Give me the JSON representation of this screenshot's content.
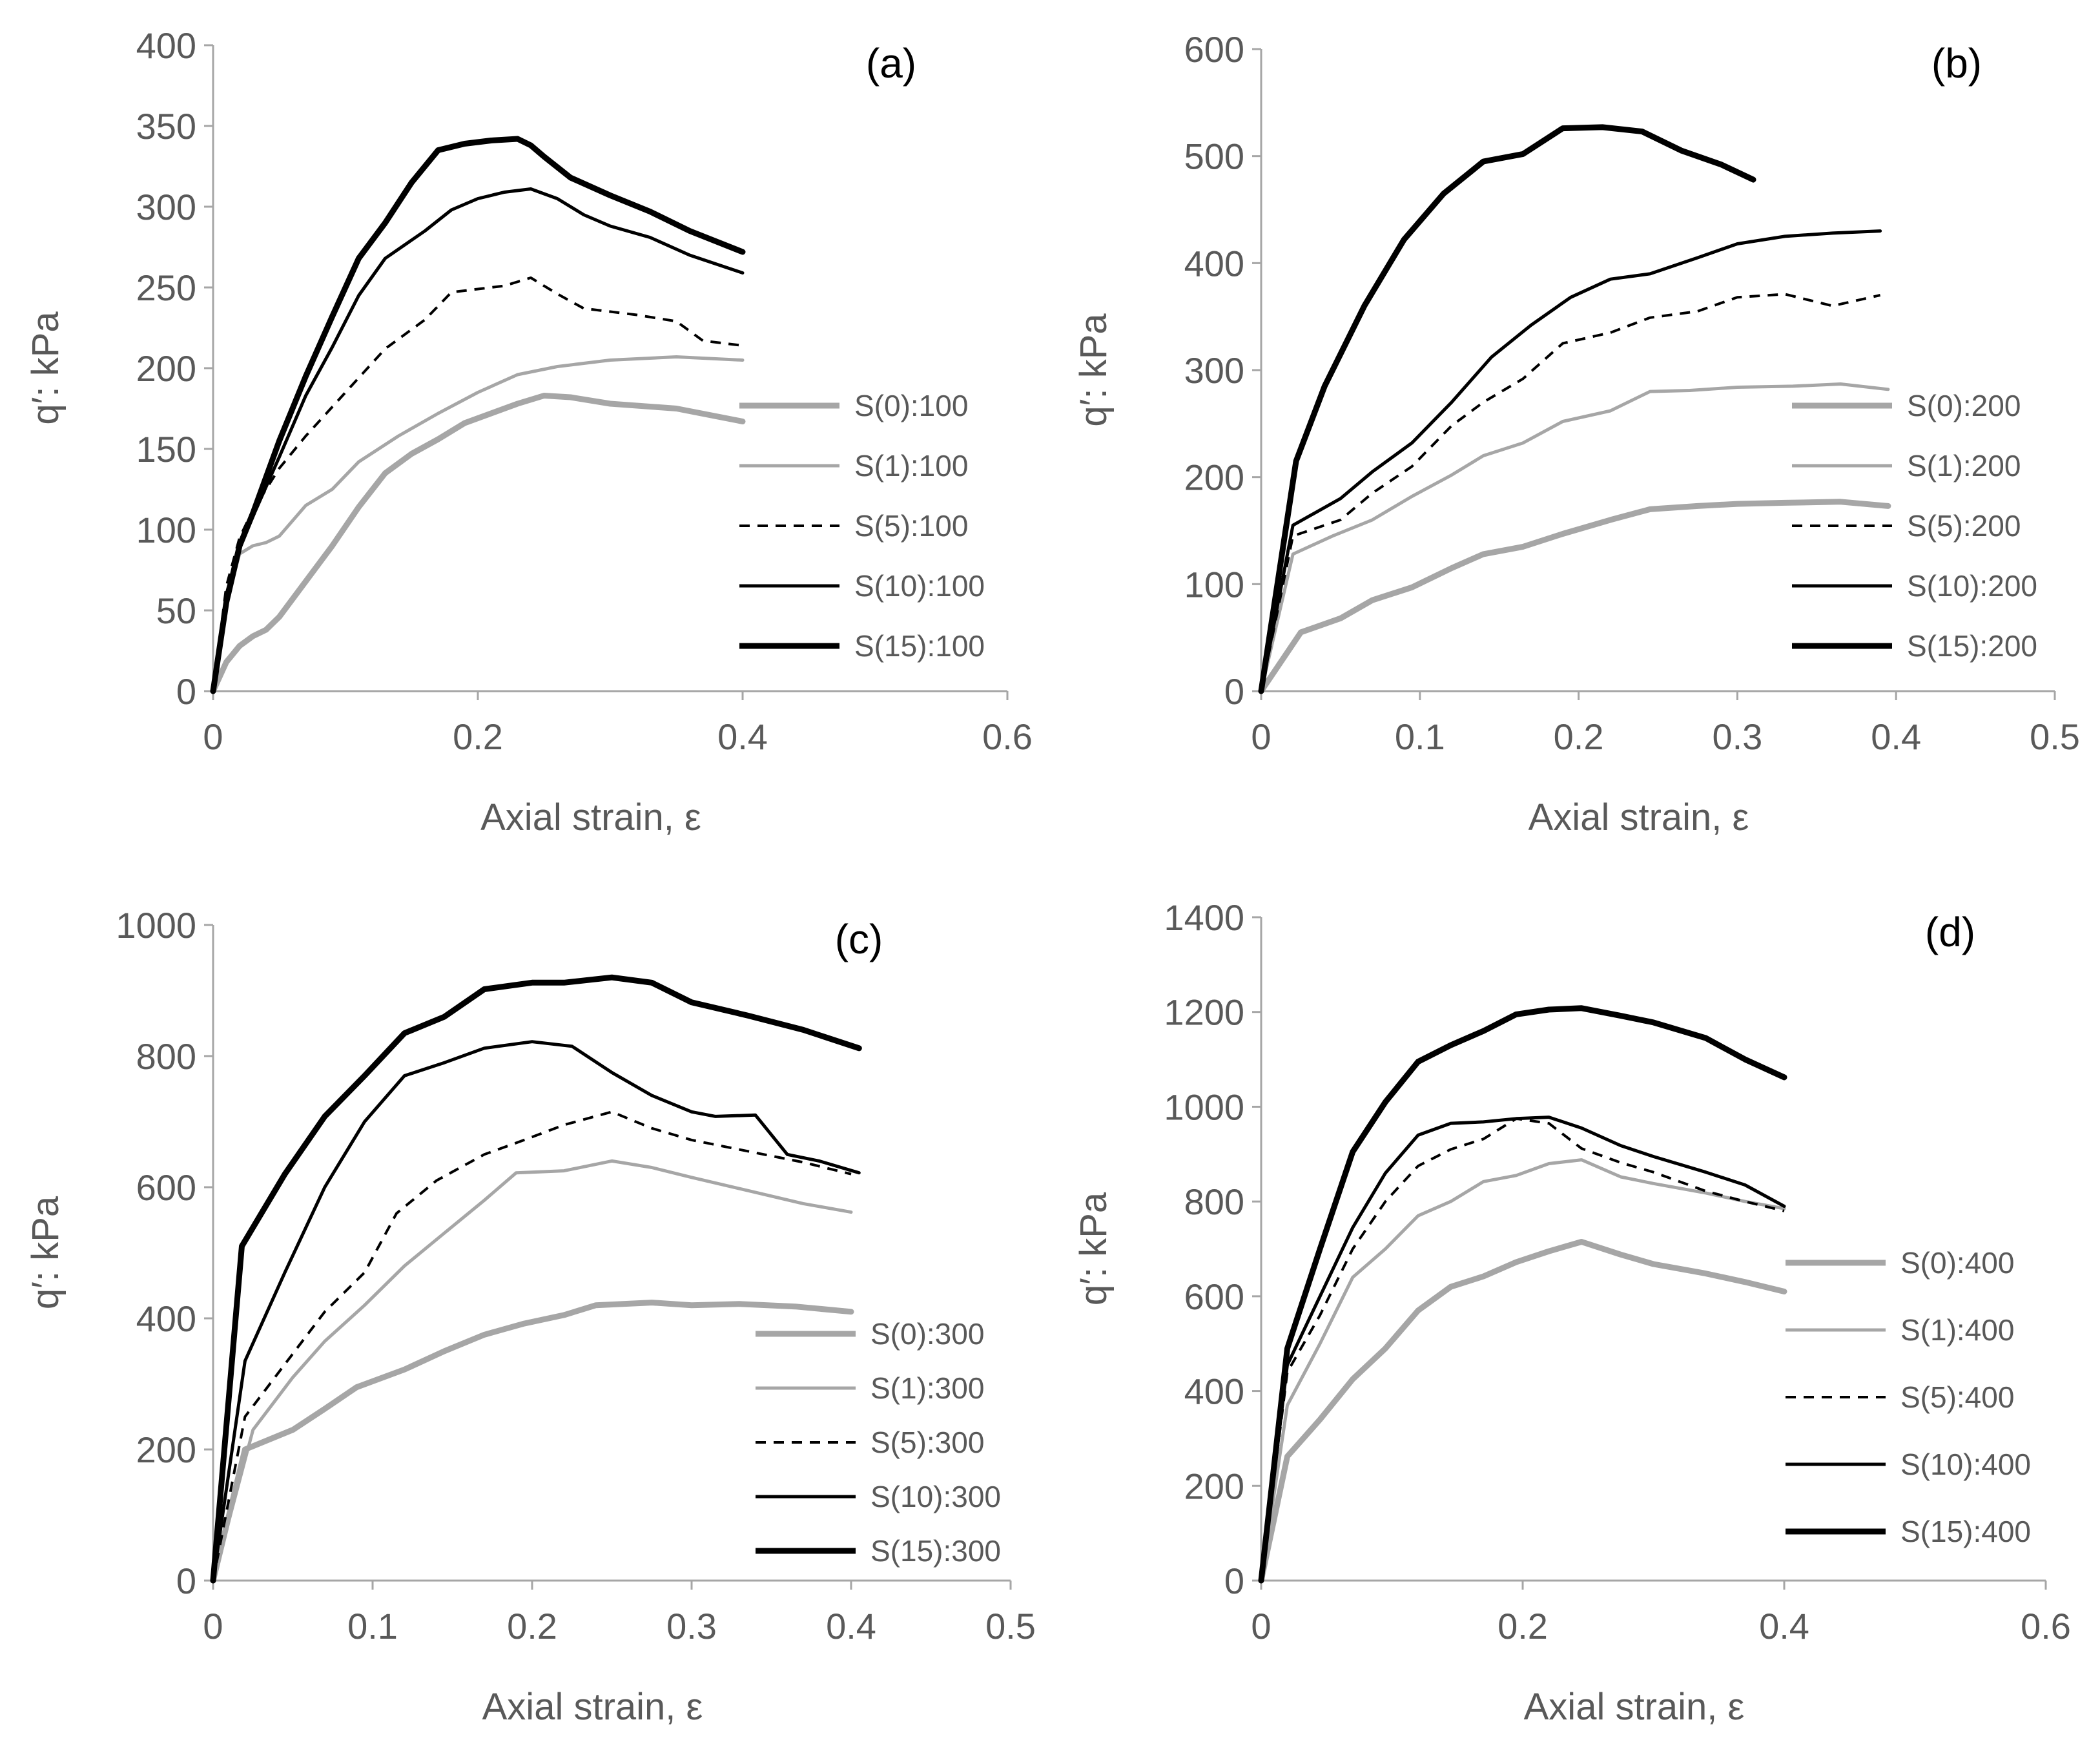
{
  "chart_data": [
    {
      "type": "line",
      "panel_label": "(a)",
      "xlabel": "Axial strain, ε",
      "ylabel": "q′: kPa",
      "xlim": [
        0,
        0.6
      ],
      "ylim": [
        0,
        400
      ],
      "xticks": [
        "0",
        "0.2",
        "0.4",
        "0.6"
      ],
      "yticks": [
        "0",
        "50",
        "100",
        "150",
        "200",
        "250",
        "300",
        "350",
        "400"
      ],
      "xtick_values": [
        0,
        0.2,
        0.4,
        0.6
      ],
      "ytick_values": [
        0,
        50,
        100,
        150,
        200,
        250,
        300,
        350,
        400
      ],
      "legend_position": "right",
      "series": [
        {
          "name": "S(0):100",
          "x": [
            0,
            0.01,
            0.02,
            0.03,
            0.04,
            0.05,
            0.07,
            0.09,
            0.11,
            0.13,
            0.15,
            0.17,
            0.19,
            0.21,
            0.23,
            0.25,
            0.27,
            0.3,
            0.35,
            0.4
          ],
          "y": [
            0,
            18,
            28,
            34,
            38,
            46,
            68,
            90,
            114,
            135,
            147,
            156,
            166,
            172,
            178,
            183,
            182,
            178,
            175,
            167
          ]
        },
        {
          "name": "S(1):100",
          "x": [
            0,
            0.01,
            0.02,
            0.03,
            0.04,
            0.05,
            0.07,
            0.09,
            0.11,
            0.14,
            0.17,
            0.2,
            0.23,
            0.26,
            0.3,
            0.35,
            0.4
          ],
          "y": [
            0,
            55,
            85,
            90,
            92,
            96,
            115,
            125,
            142,
            158,
            172,
            185,
            196,
            201,
            205,
            207,
            205
          ]
        },
        {
          "name": "S(5):100",
          "x": [
            0,
            0.01,
            0.02,
            0.03,
            0.05,
            0.07,
            0.1,
            0.13,
            0.16,
            0.18,
            0.2,
            0.22,
            0.24,
            0.26,
            0.28,
            0.32,
            0.35,
            0.37,
            0.4
          ],
          "y": [
            0,
            65,
            95,
            112,
            138,
            158,
            185,
            212,
            230,
            247,
            249,
            251,
            256,
            246,
            237,
            233,
            229,
            217,
            214
          ]
        },
        {
          "name": "S(10):100",
          "x": [
            0,
            0.01,
            0.02,
            0.03,
            0.05,
            0.07,
            0.09,
            0.11,
            0.13,
            0.16,
            0.18,
            0.2,
            0.22,
            0.24,
            0.26,
            0.28,
            0.3,
            0.33,
            0.36,
            0.4
          ],
          "y": [
            0,
            60,
            90,
            108,
            145,
            183,
            213,
            245,
            268,
            285,
            298,
            305,
            309,
            311,
            305,
            295,
            288,
            281,
            270,
            259
          ]
        },
        {
          "name": "S(15):100",
          "x": [
            0,
            0.01,
            0.02,
            0.03,
            0.05,
            0.07,
            0.09,
            0.11,
            0.13,
            0.15,
            0.17,
            0.19,
            0.21,
            0.23,
            0.24,
            0.25,
            0.27,
            0.3,
            0.33,
            0.36,
            0.4
          ],
          "y": [
            0,
            55,
            90,
            110,
            155,
            195,
            232,
            268,
            290,
            315,
            335,
            339,
            341,
            342,
            338,
            331,
            318,
            307,
            297,
            285,
            272
          ]
        }
      ]
    },
    {
      "type": "line",
      "panel_label": "(b)",
      "xlabel": "Axial strain, ε",
      "ylabel": "q′: kPa",
      "xlim": [
        0,
        0.5
      ],
      "ylim": [
        0,
        600
      ],
      "xticks": [
        "0",
        "0.1",
        "0.2",
        "0.3",
        "0.4",
        "0.5"
      ],
      "yticks": [
        "0",
        "100",
        "200",
        "300",
        "400",
        "500",
        "600"
      ],
      "xtick_values": [
        0,
        0.1,
        0.2,
        0.3,
        0.4,
        0.5
      ],
      "ytick_values": [
        0,
        100,
        200,
        300,
        400,
        500,
        600
      ],
      "legend_position": "right",
      "series": [
        {
          "name": "S(0):200",
          "x": [
            0,
            0.025,
            0.05,
            0.07,
            0.095,
            0.12,
            0.14,
            0.165,
            0.19,
            0.22,
            0.245,
            0.275,
            0.3,
            0.33,
            0.365,
            0.395
          ],
          "y": [
            0,
            55,
            68,
            85,
            97,
            115,
            128,
            135,
            147,
            160,
            170,
            173,
            175,
            176,
            177,
            173
          ]
        },
        {
          "name": "S(1):200",
          "x": [
            0,
            0.02,
            0.045,
            0.07,
            0.095,
            0.12,
            0.14,
            0.165,
            0.19,
            0.22,
            0.245,
            0.27,
            0.3,
            0.335,
            0.365,
            0.395
          ],
          "y": [
            0,
            128,
            145,
            160,
            182,
            202,
            220,
            232,
            252,
            262,
            280,
            281,
            284,
            285,
            287,
            282
          ]
        },
        {
          "name": "S(5):200",
          "x": [
            0,
            0.02,
            0.05,
            0.07,
            0.095,
            0.12,
            0.14,
            0.165,
            0.19,
            0.22,
            0.245,
            0.275,
            0.3,
            0.33,
            0.36,
            0.39
          ],
          "y": [
            0,
            145,
            160,
            185,
            210,
            248,
            270,
            292,
            325,
            335,
            349,
            355,
            368,
            371,
            360,
            370
          ]
        },
        {
          "name": "S(10):200",
          "x": [
            0,
            0.02,
            0.05,
            0.07,
            0.095,
            0.12,
            0.145,
            0.17,
            0.195,
            0.22,
            0.245,
            0.275,
            0.3,
            0.33,
            0.36,
            0.39
          ],
          "y": [
            0,
            155,
            180,
            205,
            232,
            270,
            312,
            342,
            368,
            385,
            390,
            405,
            418,
            425,
            428,
            430
          ]
        },
        {
          "name": "S(15):200",
          "x": [
            0,
            0.022,
            0.04,
            0.065,
            0.09,
            0.115,
            0.14,
            0.165,
            0.19,
            0.215,
            0.24,
            0.265,
            0.29,
            0.31
          ],
          "y": [
            0,
            215,
            285,
            360,
            422,
            465,
            495,
            502,
            526,
            527,
            523,
            505,
            492,
            478
          ]
        }
      ]
    },
    {
      "type": "line",
      "panel_label": "(c)",
      "xlabel": "Axial strain, ε",
      "ylabel": "q′: kPa",
      "xlim": [
        0,
        0.5
      ],
      "ylim": [
        0,
        1000
      ],
      "xticks": [
        "0",
        "0.1",
        "0.2",
        "0.3",
        "0.4",
        "0.5"
      ],
      "yticks": [
        "0",
        "200",
        "400",
        "600",
        "800",
        "1000"
      ],
      "xtick_values": [
        0,
        0.1,
        0.2,
        0.3,
        0.4,
        0.5
      ],
      "ytick_values": [
        0,
        200,
        400,
        600,
        800,
        1000
      ],
      "legend_position": "right",
      "series": [
        {
          "name": "S(0):300",
          "x": [
            0,
            0.02,
            0.05,
            0.07,
            0.09,
            0.12,
            0.145,
            0.17,
            0.195,
            0.22,
            0.24,
            0.275,
            0.3,
            0.33,
            0.365,
            0.4
          ],
          "y": [
            0,
            200,
            230,
            262,
            295,
            322,
            350,
            375,
            392,
            405,
            420,
            424,
            420,
            422,
            418,
            410
          ]
        },
        {
          "name": "S(1):300",
          "x": [
            0,
            0.025,
            0.05,
            0.07,
            0.095,
            0.12,
            0.145,
            0.17,
            0.19,
            0.22,
            0.25,
            0.275,
            0.3,
            0.335,
            0.37,
            0.4
          ],
          "y": [
            0,
            230,
            310,
            365,
            420,
            480,
            530,
            580,
            622,
            625,
            640,
            630,
            615,
            595,
            575,
            562
          ]
        },
        {
          "name": "S(5):300",
          "x": [
            0,
            0.02,
            0.045,
            0.07,
            0.095,
            0.115,
            0.14,
            0.17,
            0.195,
            0.22,
            0.25,
            0.275,
            0.3,
            0.335,
            0.37,
            0.4
          ],
          "y": [
            0,
            250,
            330,
            410,
            470,
            560,
            610,
            650,
            672,
            695,
            715,
            690,
            672,
            655,
            638,
            620
          ]
        },
        {
          "name": "S(10):300",
          "x": [
            0,
            0.02,
            0.045,
            0.07,
            0.095,
            0.12,
            0.145,
            0.17,
            0.2,
            0.225,
            0.25,
            0.275,
            0.3,
            0.315,
            0.34,
            0.36,
            0.38,
            0.405
          ],
          "y": [
            0,
            335,
            470,
            600,
            700,
            770,
            790,
            812,
            822,
            815,
            775,
            740,
            715,
            708,
            710,
            650,
            640,
            622
          ]
        },
        {
          "name": "S(15):300",
          "x": [
            0,
            0.018,
            0.045,
            0.07,
            0.095,
            0.12,
            0.145,
            0.17,
            0.2,
            0.22,
            0.25,
            0.275,
            0.3,
            0.335,
            0.37,
            0.405
          ],
          "y": [
            0,
            510,
            620,
            708,
            770,
            835,
            860,
            902,
            912,
            912,
            920,
            912,
            882,
            862,
            840,
            812
          ]
        }
      ]
    },
    {
      "type": "line",
      "panel_label": "(d)",
      "xlabel": "Axial strain, ε",
      "ylabel": "q′: kPa",
      "xlim": [
        0,
        0.6
      ],
      "ylim": [
        0,
        1400
      ],
      "xticks": [
        "0",
        "0.2",
        "0.4",
        "0.6"
      ],
      "yticks": [
        "0",
        "200",
        "400",
        "600",
        "800",
        "1000",
        "1200",
        "1400"
      ],
      "xtick_values": [
        0,
        0.2,
        0.4,
        0.6
      ],
      "ytick_values": [
        0,
        200,
        400,
        600,
        800,
        1000,
        1200,
        1400
      ],
      "legend_position": "right",
      "series": [
        {
          "name": "S(0):400",
          "x": [
            0,
            0.02,
            0.045,
            0.07,
            0.095,
            0.12,
            0.145,
            0.17,
            0.195,
            0.22,
            0.245,
            0.275,
            0.3,
            0.34,
            0.37,
            0.4
          ],
          "y": [
            0,
            262,
            340,
            425,
            490,
            570,
            620,
            642,
            672,
            695,
            715,
            688,
            668,
            648,
            630,
            610
          ]
        },
        {
          "name": "S(1):400",
          "x": [
            0,
            0.02,
            0.045,
            0.07,
            0.095,
            0.12,
            0.145,
            0.17,
            0.195,
            0.22,
            0.245,
            0.275,
            0.3,
            0.34,
            0.37,
            0.4
          ],
          "y": [
            0,
            370,
            500,
            640,
            700,
            770,
            800,
            842,
            855,
            880,
            888,
            852,
            838,
            818,
            800,
            785
          ]
        },
        {
          "name": "S(5):400",
          "x": [
            0,
            0.02,
            0.045,
            0.07,
            0.095,
            0.12,
            0.145,
            0.17,
            0.195,
            0.22,
            0.245,
            0.275,
            0.3,
            0.34,
            0.37,
            0.4
          ],
          "y": [
            0,
            440,
            560,
            700,
            800,
            875,
            910,
            932,
            975,
            965,
            912,
            882,
            862,
            822,
            800,
            780
          ]
        },
        {
          "name": "S(10):400",
          "x": [
            0,
            0.02,
            0.045,
            0.07,
            0.095,
            0.12,
            0.145,
            0.17,
            0.195,
            0.22,
            0.245,
            0.275,
            0.3,
            0.34,
            0.37,
            0.4
          ],
          "y": [
            0,
            455,
            600,
            745,
            860,
            940,
            965,
            968,
            975,
            978,
            955,
            918,
            895,
            862,
            835,
            790
          ]
        },
        {
          "name": "S(15):400",
          "x": [
            0,
            0.02,
            0.045,
            0.07,
            0.095,
            0.12,
            0.145,
            0.17,
            0.195,
            0.22,
            0.245,
            0.275,
            0.3,
            0.34,
            0.37,
            0.4
          ],
          "y": [
            0,
            490,
            700,
            905,
            1010,
            1095,
            1130,
            1160,
            1195,
            1205,
            1208,
            1192,
            1178,
            1145,
            1100,
            1062
          ]
        }
      ]
    }
  ]
}
